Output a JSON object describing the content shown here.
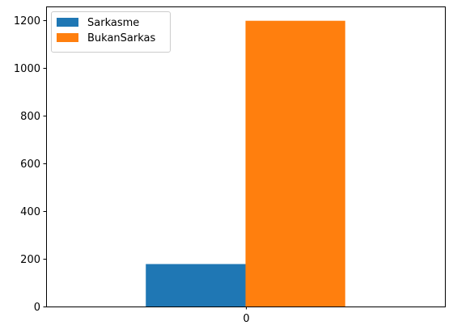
{
  "chart_data": {
    "type": "bar",
    "categories": [
      "0"
    ],
    "series": [
      {
        "name": "Sarkasme",
        "values": [
          178
        ],
        "color": "#1f77b4"
      },
      {
        "name": "BukanSarkas",
        "values": [
          1198
        ],
        "color": "#ff7f0e"
      }
    ],
    "yticks": [
      0,
      200,
      400,
      600,
      800,
      1000,
      1200
    ],
    "ylim": [
      0,
      1258
    ],
    "xlabel": "",
    "ylabel": "",
    "title": "",
    "grid": false,
    "legend_position": "top-left"
  }
}
